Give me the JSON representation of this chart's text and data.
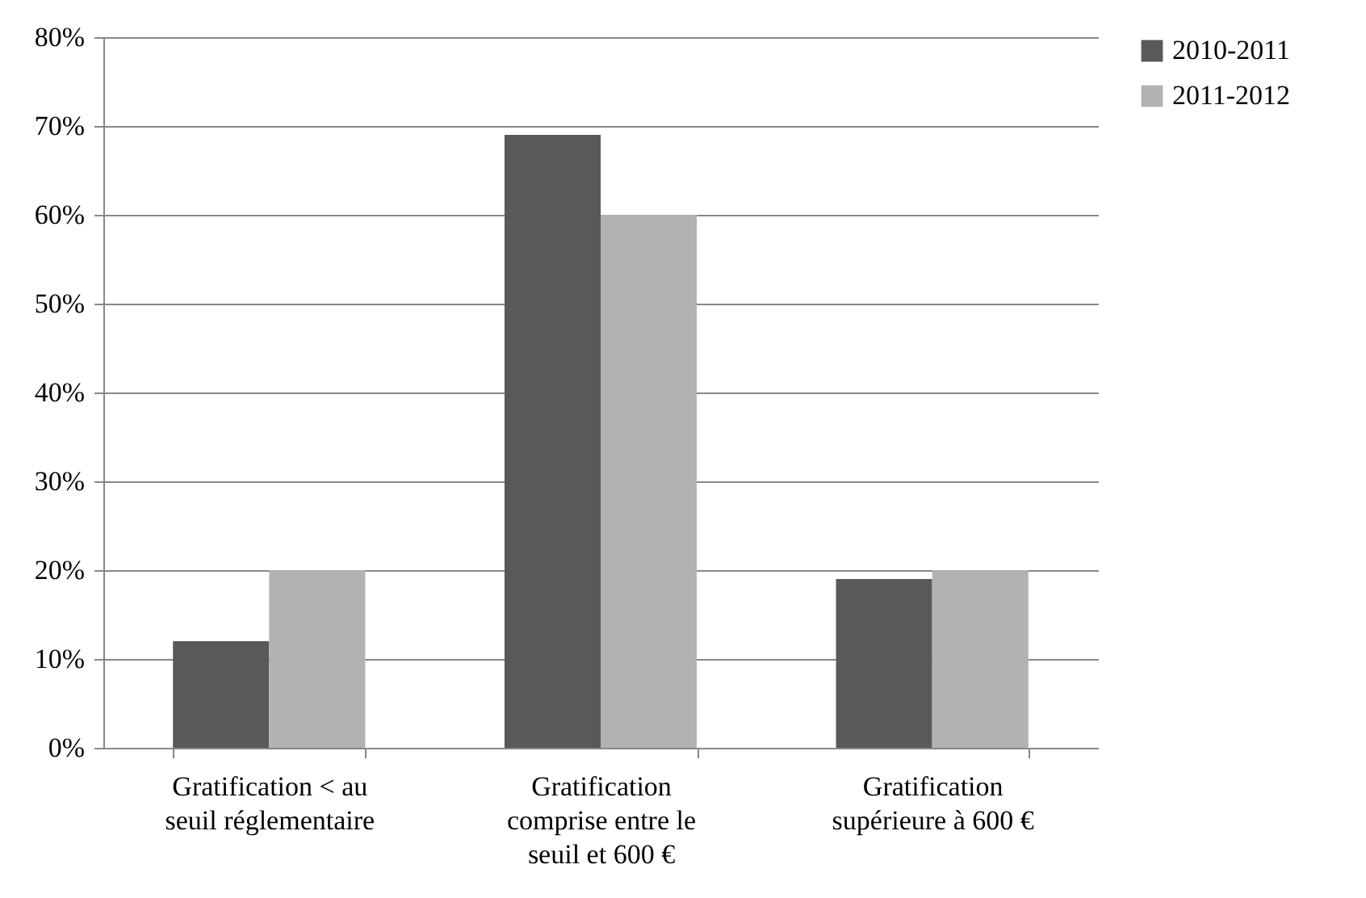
{
  "chart_data": {
    "type": "bar",
    "categories": [
      "Gratification < au seuil réglementaire",
      "Gratification comprise entre le seuil et 600 €",
      "Gratification supérieure à 600 €"
    ],
    "series": [
      {
        "name": "2010-2011",
        "color": "#595959",
        "values": [
          12,
          69,
          19
        ]
      },
      {
        "name": "2011-2012",
        "color": "#b2b2b2",
        "values": [
          20,
          60,
          20
        ]
      }
    ],
    "ylim": [
      0,
      80
    ],
    "yticks": [
      {
        "value": 0,
        "label": "0%"
      },
      {
        "value": 10,
        "label": "10%"
      },
      {
        "value": 20,
        "label": "20%"
      },
      {
        "value": 30,
        "label": "30%"
      },
      {
        "value": 40,
        "label": "40%"
      },
      {
        "value": 50,
        "label": "50%"
      },
      {
        "value": 60,
        "label": "60%"
      },
      {
        "value": 70,
        "label": "70%"
      },
      {
        "value": 80,
        "label": "80%"
      }
    ],
    "grid": "y",
    "legend": "right"
  }
}
